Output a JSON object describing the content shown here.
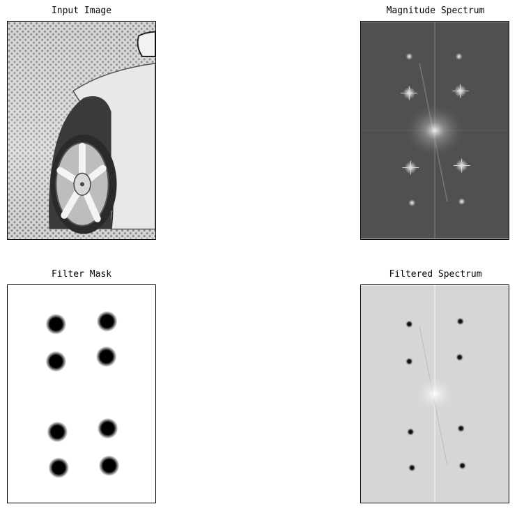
{
  "figure": {
    "panels": [
      {
        "id": "input",
        "title": "Input Image"
      },
      {
        "id": "magnitude",
        "title": "Magnitude Spectrum"
      },
      {
        "id": "mask",
        "title": "Filter Mask"
      },
      {
        "id": "filtered",
        "title": "Filtered Spectrum"
      }
    ]
  },
  "colors": {
    "background": "#ffffff",
    "border": "#000000",
    "spectrum_dark": "#505050",
    "spectrum_light": "#d6d6d6",
    "mask_dot": "#000000"
  }
}
